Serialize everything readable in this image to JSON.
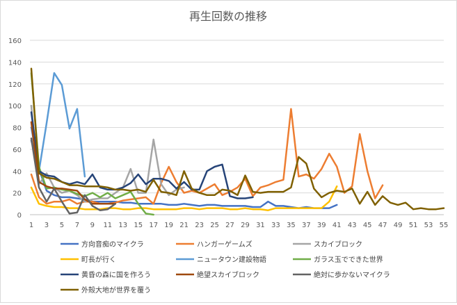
{
  "chart_data": {
    "type": "line",
    "title": "再生回数の推移",
    "xlabel": "",
    "ylabel": "",
    "ylim": [
      0,
      160
    ],
    "yticks": [
      0,
      20,
      40,
      60,
      80,
      100,
      120,
      140,
      160
    ],
    "xlim": [
      1,
      55
    ],
    "xticks": [
      1,
      3,
      5,
      7,
      9,
      11,
      13,
      15,
      17,
      19,
      21,
      23,
      25,
      27,
      29,
      31,
      33,
      35,
      37,
      39,
      41,
      43,
      45,
      47,
      49,
      51,
      53,
      55
    ],
    "grid": "horizontal",
    "legend_position": "bottom",
    "series": [
      {
        "name": "方向音痴のマイクラ",
        "color": "#4472c4",
        "values": [
          68,
          42,
          22,
          18,
          16,
          16,
          15,
          14,
          12,
          12,
          12,
          12,
          11,
          11,
          10,
          10,
          10,
          10,
          9,
          9,
          10,
          9,
          8,
          9,
          9,
          8,
          8,
          8,
          8,
          7,
          7,
          12,
          8,
          8,
          7,
          6,
          7,
          6,
          6,
          6,
          9
        ]
      },
      {
        "name": "ハンガーゲームズ",
        "color": "#ed7d31",
        "values": [
          37,
          16,
          10,
          12,
          12,
          14,
          10,
          12,
          12,
          10,
          10,
          11,
          13,
          14,
          15,
          16,
          10,
          29,
          44,
          30,
          20,
          22,
          20,
          24,
          28,
          18,
          21,
          25,
          33,
          17,
          25,
          27,
          30,
          32,
          97,
          35,
          37,
          33,
          42,
          56,
          44,
          20,
          26,
          74,
          40,
          15,
          27
        ]
      },
      {
        "name": "スカイブロック",
        "color": "#a5a5a5",
        "values": [
          100,
          28,
          38,
          25,
          20,
          22,
          18,
          12,
          14,
          15,
          15,
          20,
          25,
          42,
          20,
          20,
          69,
          28,
          18,
          23,
          25
        ]
      },
      {
        "name": "町長が行く",
        "color": "#ffc000",
        "values": [
          25,
          10,
          8,
          7,
          7,
          6,
          6,
          5,
          5,
          5,
          6,
          6,
          5,
          5,
          6,
          6,
          5,
          5,
          5,
          5,
          6,
          6,
          5,
          6,
          6,
          6,
          5,
          5,
          6,
          5,
          5,
          4,
          6,
          6,
          6,
          6,
          6,
          6,
          6,
          12,
          26
        ]
      },
      {
        "name": "ニュータウン建設物語",
        "color": "#5b9bd5",
        "values": [
          80,
          40,
          84,
          130,
          119,
          79,
          97,
          35
        ]
      },
      {
        "name": "ガラス玉でできた世界",
        "color": "#70ad47",
        "values": [
          130,
          44,
          24,
          25,
          23,
          22,
          19,
          17,
          20,
          16,
          20,
          15,
          18,
          21,
          10,
          1,
          0
        ]
      },
      {
        "name": "黄昏の森に国を作ろう",
        "color": "#264478",
        "values": [
          94,
          40,
          36,
          35,
          30,
          28,
          30,
          28,
          37,
          25,
          23,
          23,
          25,
          29,
          37,
          28,
          33,
          33,
          31,
          24,
          30,
          23,
          23,
          40,
          44,
          46,
          17,
          15,
          15,
          16
        ]
      },
      {
        "name": "絶望スカイブロック",
        "color": "#9e480e",
        "values": [
          85,
          30,
          26,
          24,
          24,
          23,
          22,
          14,
          10,
          10,
          10,
          10
        ]
      },
      {
        "name": "絶対に歩かないマイクラ",
        "color": "#636363",
        "values": [
          70,
          25,
          12,
          24,
          12,
          1,
          2,
          18,
          8,
          4,
          5,
          10
        ]
      },
      {
        "name": "外殻大地が世界を覆う",
        "color": "#7f6000",
        "values": [
          134,
          38,
          34,
          33,
          30,
          27,
          27,
          26,
          26,
          26,
          25,
          23,
          23,
          22,
          23,
          21,
          32,
          21,
          20,
          18,
          40,
          24,
          20,
          18,
          18,
          23,
          22,
          18,
          36,
          21,
          20,
          21,
          21,
          21,
          25,
          53,
          47,
          24,
          16,
          20,
          22,
          21,
          24,
          10,
          21,
          9,
          17,
          11,
          9,
          11,
          5,
          6,
          5,
          5,
          6
        ]
      }
    ]
  }
}
